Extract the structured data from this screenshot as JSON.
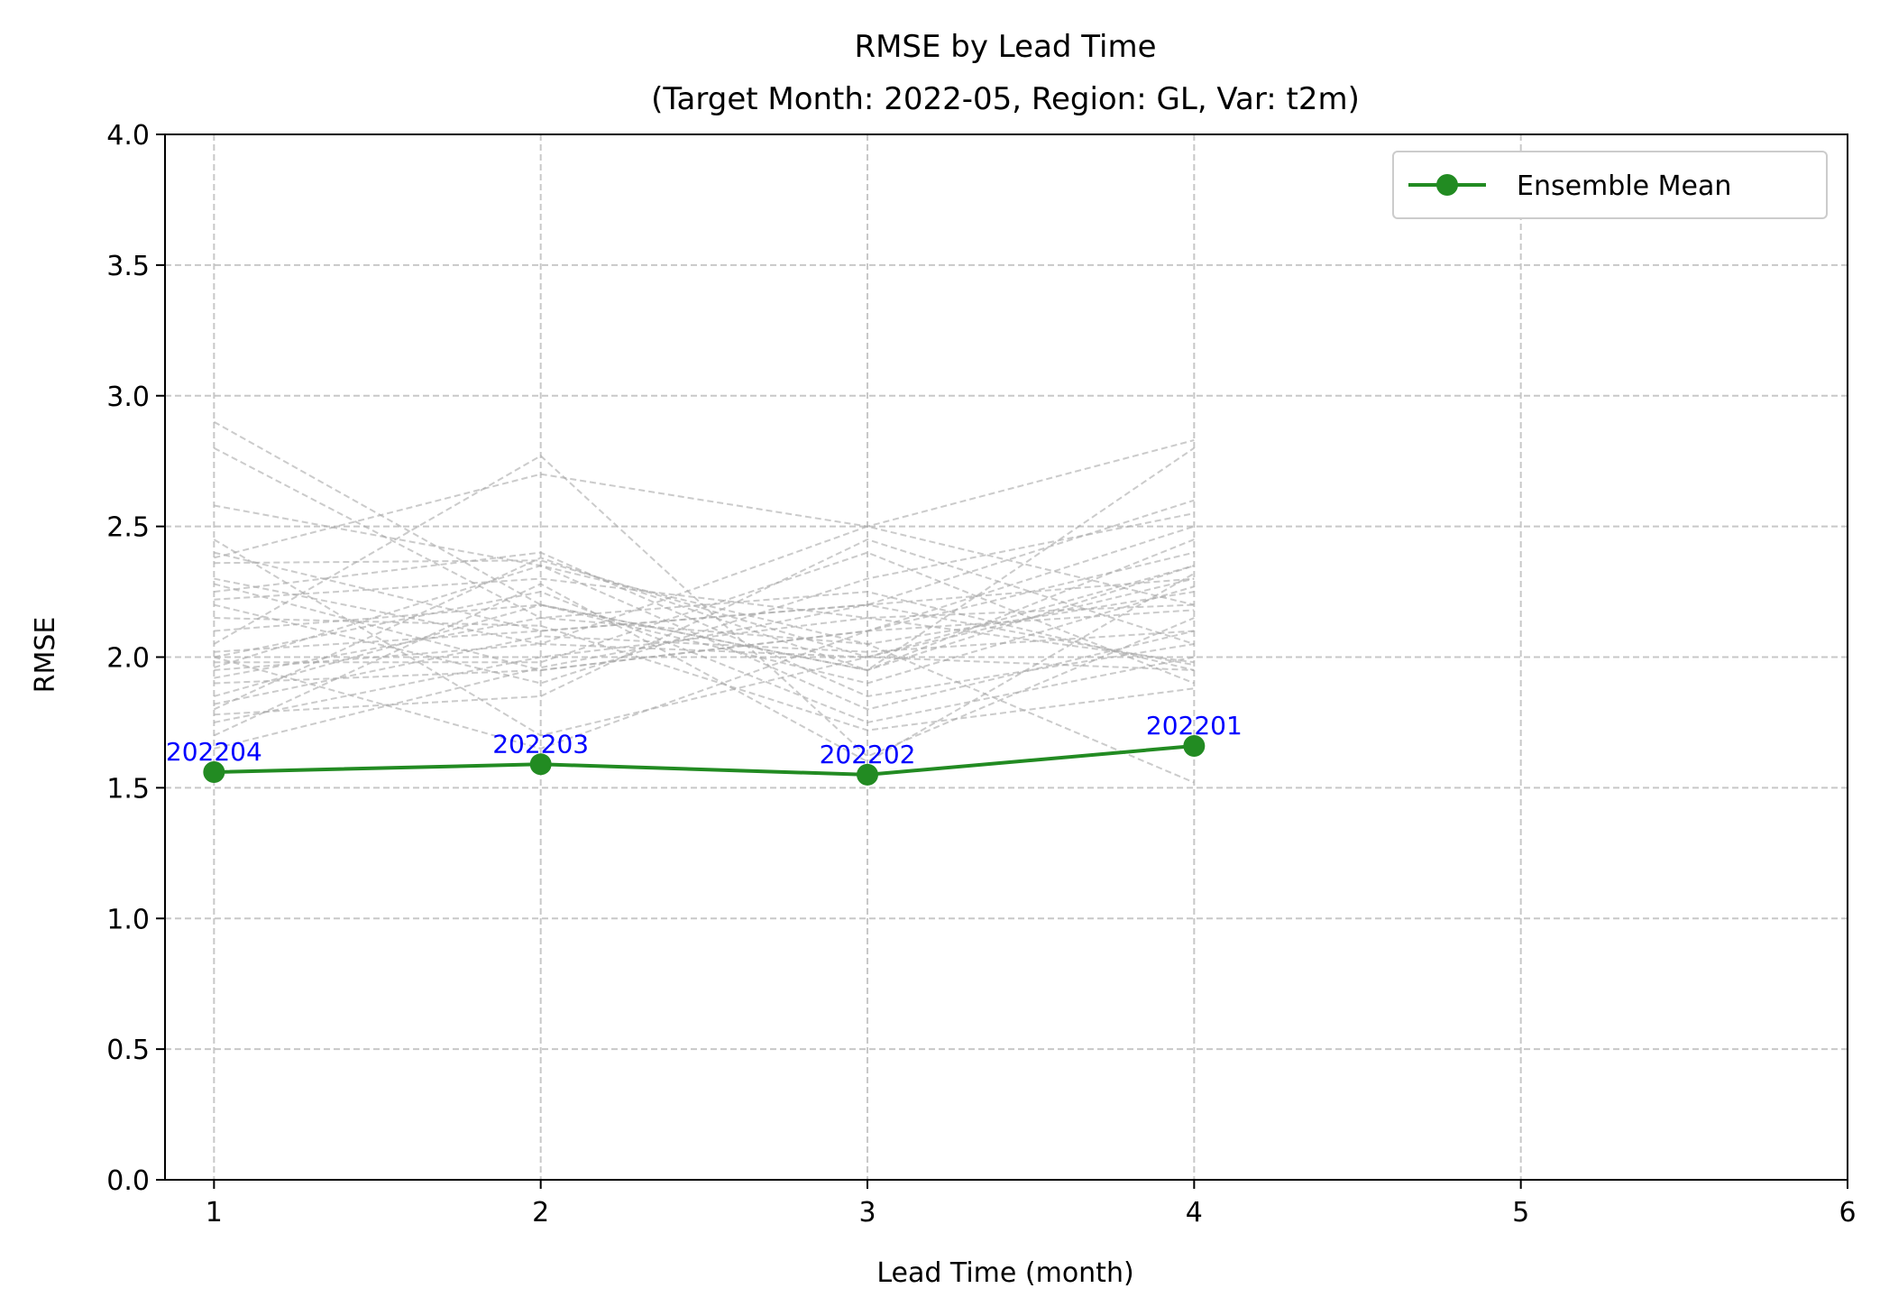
{
  "chart_data": {
    "type": "line",
    "title": "RMSE by Lead Time",
    "subtitle": "(Target Month: 2022-05, Region: GL, Var: t2m)",
    "xlabel": "Lead Time (month)",
    "ylabel": "RMSE",
    "xlim": [
      0.85,
      6
    ],
    "ylim": [
      0,
      4
    ],
    "xticks": [
      "1",
      "2",
      "3",
      "4",
      "5",
      "6"
    ],
    "yticks": [
      "0.0",
      "0.5",
      "1.0",
      "1.5",
      "2.0",
      "2.5",
      "3.0",
      "3.5",
      "4.0"
    ],
    "grid": true,
    "legend_position": "top-right",
    "x": [
      1,
      2,
      3,
      4
    ],
    "series": [
      {
        "name": "Ensemble Mean",
        "color": "#228B22",
        "marker": "circle",
        "values": [
          1.56,
          1.59,
          1.55,
          1.66
        ],
        "point_labels": [
          "202204",
          "202203",
          "202202",
          "202201"
        ],
        "point_label_color": "#0000FF"
      }
    ],
    "member_series_color": "#A9A9A9",
    "member_series": [
      [
        2.9,
        2.2,
        1.95,
        2.35
      ],
      [
        2.8,
        2.15,
        2.05,
        2.25
      ],
      [
        2.58,
        2.35,
        1.8,
        2.1
      ],
      [
        2.45,
        1.7,
        2.0,
        2.3
      ],
      [
        2.4,
        2.1,
        2.2,
        2.6
      ],
      [
        2.36,
        2.37,
        2.0,
        1.95
      ],
      [
        2.3,
        2.05,
        2.5,
        2.2
      ],
      [
        2.28,
        1.95,
        2.1,
        2.4
      ],
      [
        2.25,
        2.4,
        1.85,
        2.05
      ],
      [
        2.22,
        2.3,
        2.15,
        1.98
      ],
      [
        2.2,
        1.9,
        2.3,
        2.55
      ],
      [
        2.1,
        2.2,
        1.95,
        2.8
      ],
      [
        2.05,
        2.77,
        1.62,
        2.15
      ],
      [
        2.02,
        2.1,
        2.2,
        2.3
      ],
      [
        2.0,
        2.25,
        1.75,
        2.0
      ],
      [
        1.98,
        1.98,
        2.4,
        1.9
      ],
      [
        1.96,
        2.35,
        2.05,
        1.52
      ],
      [
        1.95,
        2.05,
        2.0,
        2.35
      ],
      [
        1.92,
        2.15,
        2.25,
        1.95
      ],
      [
        1.9,
        1.95,
        2.1,
        2.18
      ],
      [
        1.85,
        2.2,
        1.9,
        2.27
      ],
      [
        1.82,
        2.08,
        2.02,
        2.1
      ],
      [
        1.8,
        2.38,
        1.95,
        2.45
      ],
      [
        1.78,
        1.85,
        2.45,
        2.05
      ],
      [
        1.75,
        2.0,
        2.15,
        2.2
      ],
      [
        1.7,
        2.28,
        1.6,
        2.32
      ],
      [
        1.65,
        1.96,
        2.2,
        1.97
      ],
      [
        2.38,
        2.7,
        2.5,
        2.83
      ],
      [
        2.15,
        2.12,
        1.72,
        1.88
      ],
      [
        2.0,
        1.65,
        2.1,
        2.5
      ]
    ]
  }
}
